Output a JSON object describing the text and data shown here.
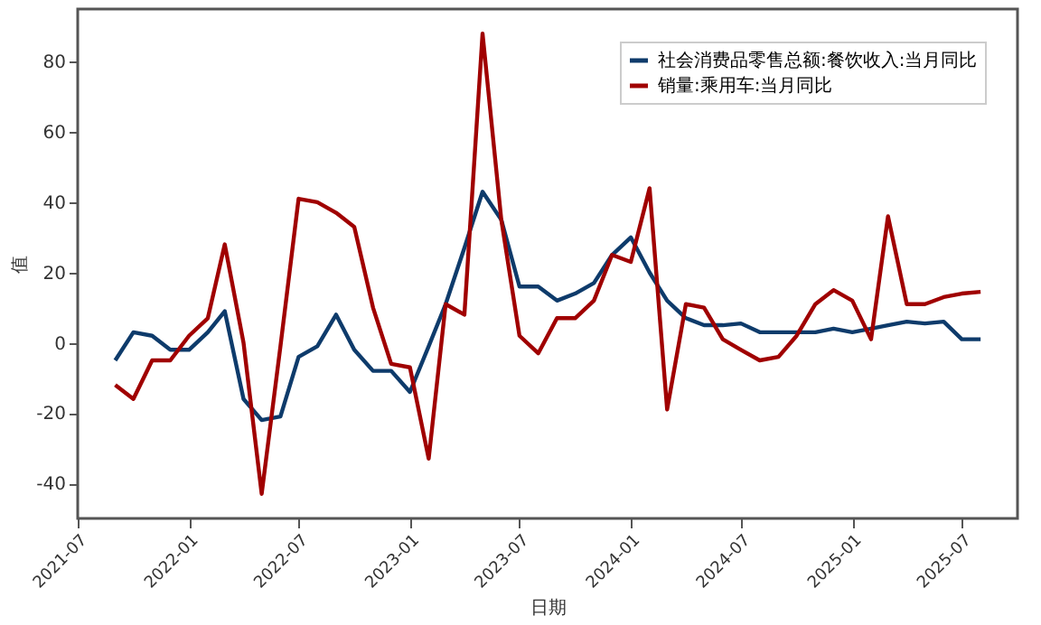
{
  "chart_data": {
    "type": "line",
    "xlabel": "日期",
    "ylabel": "值",
    "x": [
      "2021-09",
      "2021-10",
      "2021-11",
      "2021-12",
      "2022-01",
      "2022-02",
      "2022-03",
      "2022-04",
      "2022-05",
      "2022-06",
      "2022-07",
      "2022-08",
      "2022-09",
      "2022-10",
      "2022-11",
      "2022-12",
      "2023-01",
      "2023-02",
      "2023-03",
      "2023-04",
      "2023-05",
      "2023-06",
      "2023-07",
      "2023-08",
      "2023-09",
      "2023-10",
      "2023-11",
      "2023-12",
      "2024-01",
      "2024-02",
      "2024-03",
      "2024-04",
      "2024-05",
      "2024-06",
      "2024-07",
      "2024-08",
      "2024-09",
      "2024-10",
      "2024-11",
      "2024-12",
      "2025-01",
      "2025-02",
      "2025-03",
      "2025-04",
      "2025-05",
      "2025-06",
      "2025-07",
      "2025-08"
    ],
    "series": [
      {
        "name": "社会消费品零售总额:餐饮收入:当月同比",
        "color": "#0e3b6b",
        "values": [
          -5,
          3,
          2,
          -2,
          -2,
          3,
          9,
          -16,
          -22,
          -21,
          -4,
          -1,
          8,
          -2,
          -8,
          -8,
          -14,
          -1,
          11,
          27,
          43,
          35,
          16,
          16,
          12,
          14,
          17,
          25,
          30,
          20,
          12,
          7,
          5,
          5,
          5.5,
          3,
          3,
          3,
          3,
          4,
          3,
          4,
          5,
          6,
          5.5,
          6,
          1,
          1
        ]
      },
      {
        "name": "销量:乘用车:当月同比",
        "color": "#a00000",
        "values": [
          -12,
          -16,
          -5,
          -5,
          2,
          7,
          28,
          0,
          -43,
          -1,
          41,
          40,
          37,
          33,
          10,
          -6,
          -7,
          -33,
          11,
          8,
          88,
          35,
          2,
          -3,
          7,
          7,
          12,
          25,
          23,
          44,
          -19,
          11,
          10,
          1,
          -2,
          -5,
          -4,
          2,
          11,
          15,
          12,
          1,
          36,
          11,
          11,
          13,
          14,
          14.5
        ]
      }
    ],
    "xlim": [
      "2021-07",
      "2025-10"
    ],
    "xticks": [
      "2021-07",
      "2022-01",
      "2022-07",
      "2023-01",
      "2023-07",
      "2024-01",
      "2024-07",
      "2025-01",
      "2025-07"
    ],
    "ylim": [
      -50,
      95
    ],
    "yticks": [
      -40,
      -20,
      0,
      20,
      40,
      60,
      80
    ],
    "grid": false,
    "legend": "top right",
    "line_style": "solid",
    "marker": "none"
  }
}
